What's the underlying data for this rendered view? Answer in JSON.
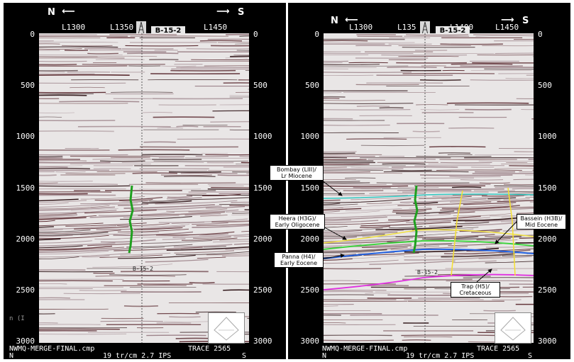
{
  "panels": [
    {
      "id": "left",
      "north": "N",
      "south": "S",
      "line_labels": [
        "L1300",
        "L1350",
        "L1450"
      ],
      "well": "B-15-2",
      "well_marker": "B-15-2",
      "time_ticks": [
        "0",
        "500",
        "1000",
        "1500",
        "2000",
        "2500",
        "3000"
      ],
      "footer_left": "NWMQ-MERGE-FINAL.cmp",
      "footer_trace": "TRACE  2565",
      "footer_n": "N",
      "footer_scale": "19  tr/cm  2.7  IPS",
      "footer_s": "S",
      "fragment": "n (I"
    },
    {
      "id": "right",
      "north": "N",
      "south": "S",
      "line_labels": [
        "L1300",
        "L135",
        "L1400",
        "L1450"
      ],
      "well": "B-15-2",
      "well_marker": "B-15-2",
      "time_ticks": [
        "0",
        "500",
        "1000",
        "1500",
        "2000",
        "2500",
        "3000"
      ],
      "footer_left": "NWMQ-MERGE-FINAL.cmp",
      "footer_trace": "TRACE  2565",
      "footer_n": "N",
      "footer_scale": "19  tr/cm  2.7  IPS",
      "footer_s": "S"
    }
  ],
  "callouts": [
    {
      "line1": "Bombay (LIII)/",
      "line2": "Lr Miocene"
    },
    {
      "line1": "Heera (H3G)/",
      "line2": "Early Oligocene"
    },
    {
      "line1": "Panna (H4)/",
      "line2": "Early Eocene"
    },
    {
      "line1": "Bassein (H3B)/",
      "line2": "Mid Eocene"
    },
    {
      "line1": "Trap (H5)/",
      "line2": "Cretaceous"
    }
  ],
  "horizon_colors": {
    "bombay": "#2fc7c0",
    "heera": "#f0e040",
    "bassein": "#3fd23f",
    "panna": "#2060e0",
    "trap": "#e030e0",
    "faults": "#f5e030",
    "well_log": "#1fa01f"
  }
}
